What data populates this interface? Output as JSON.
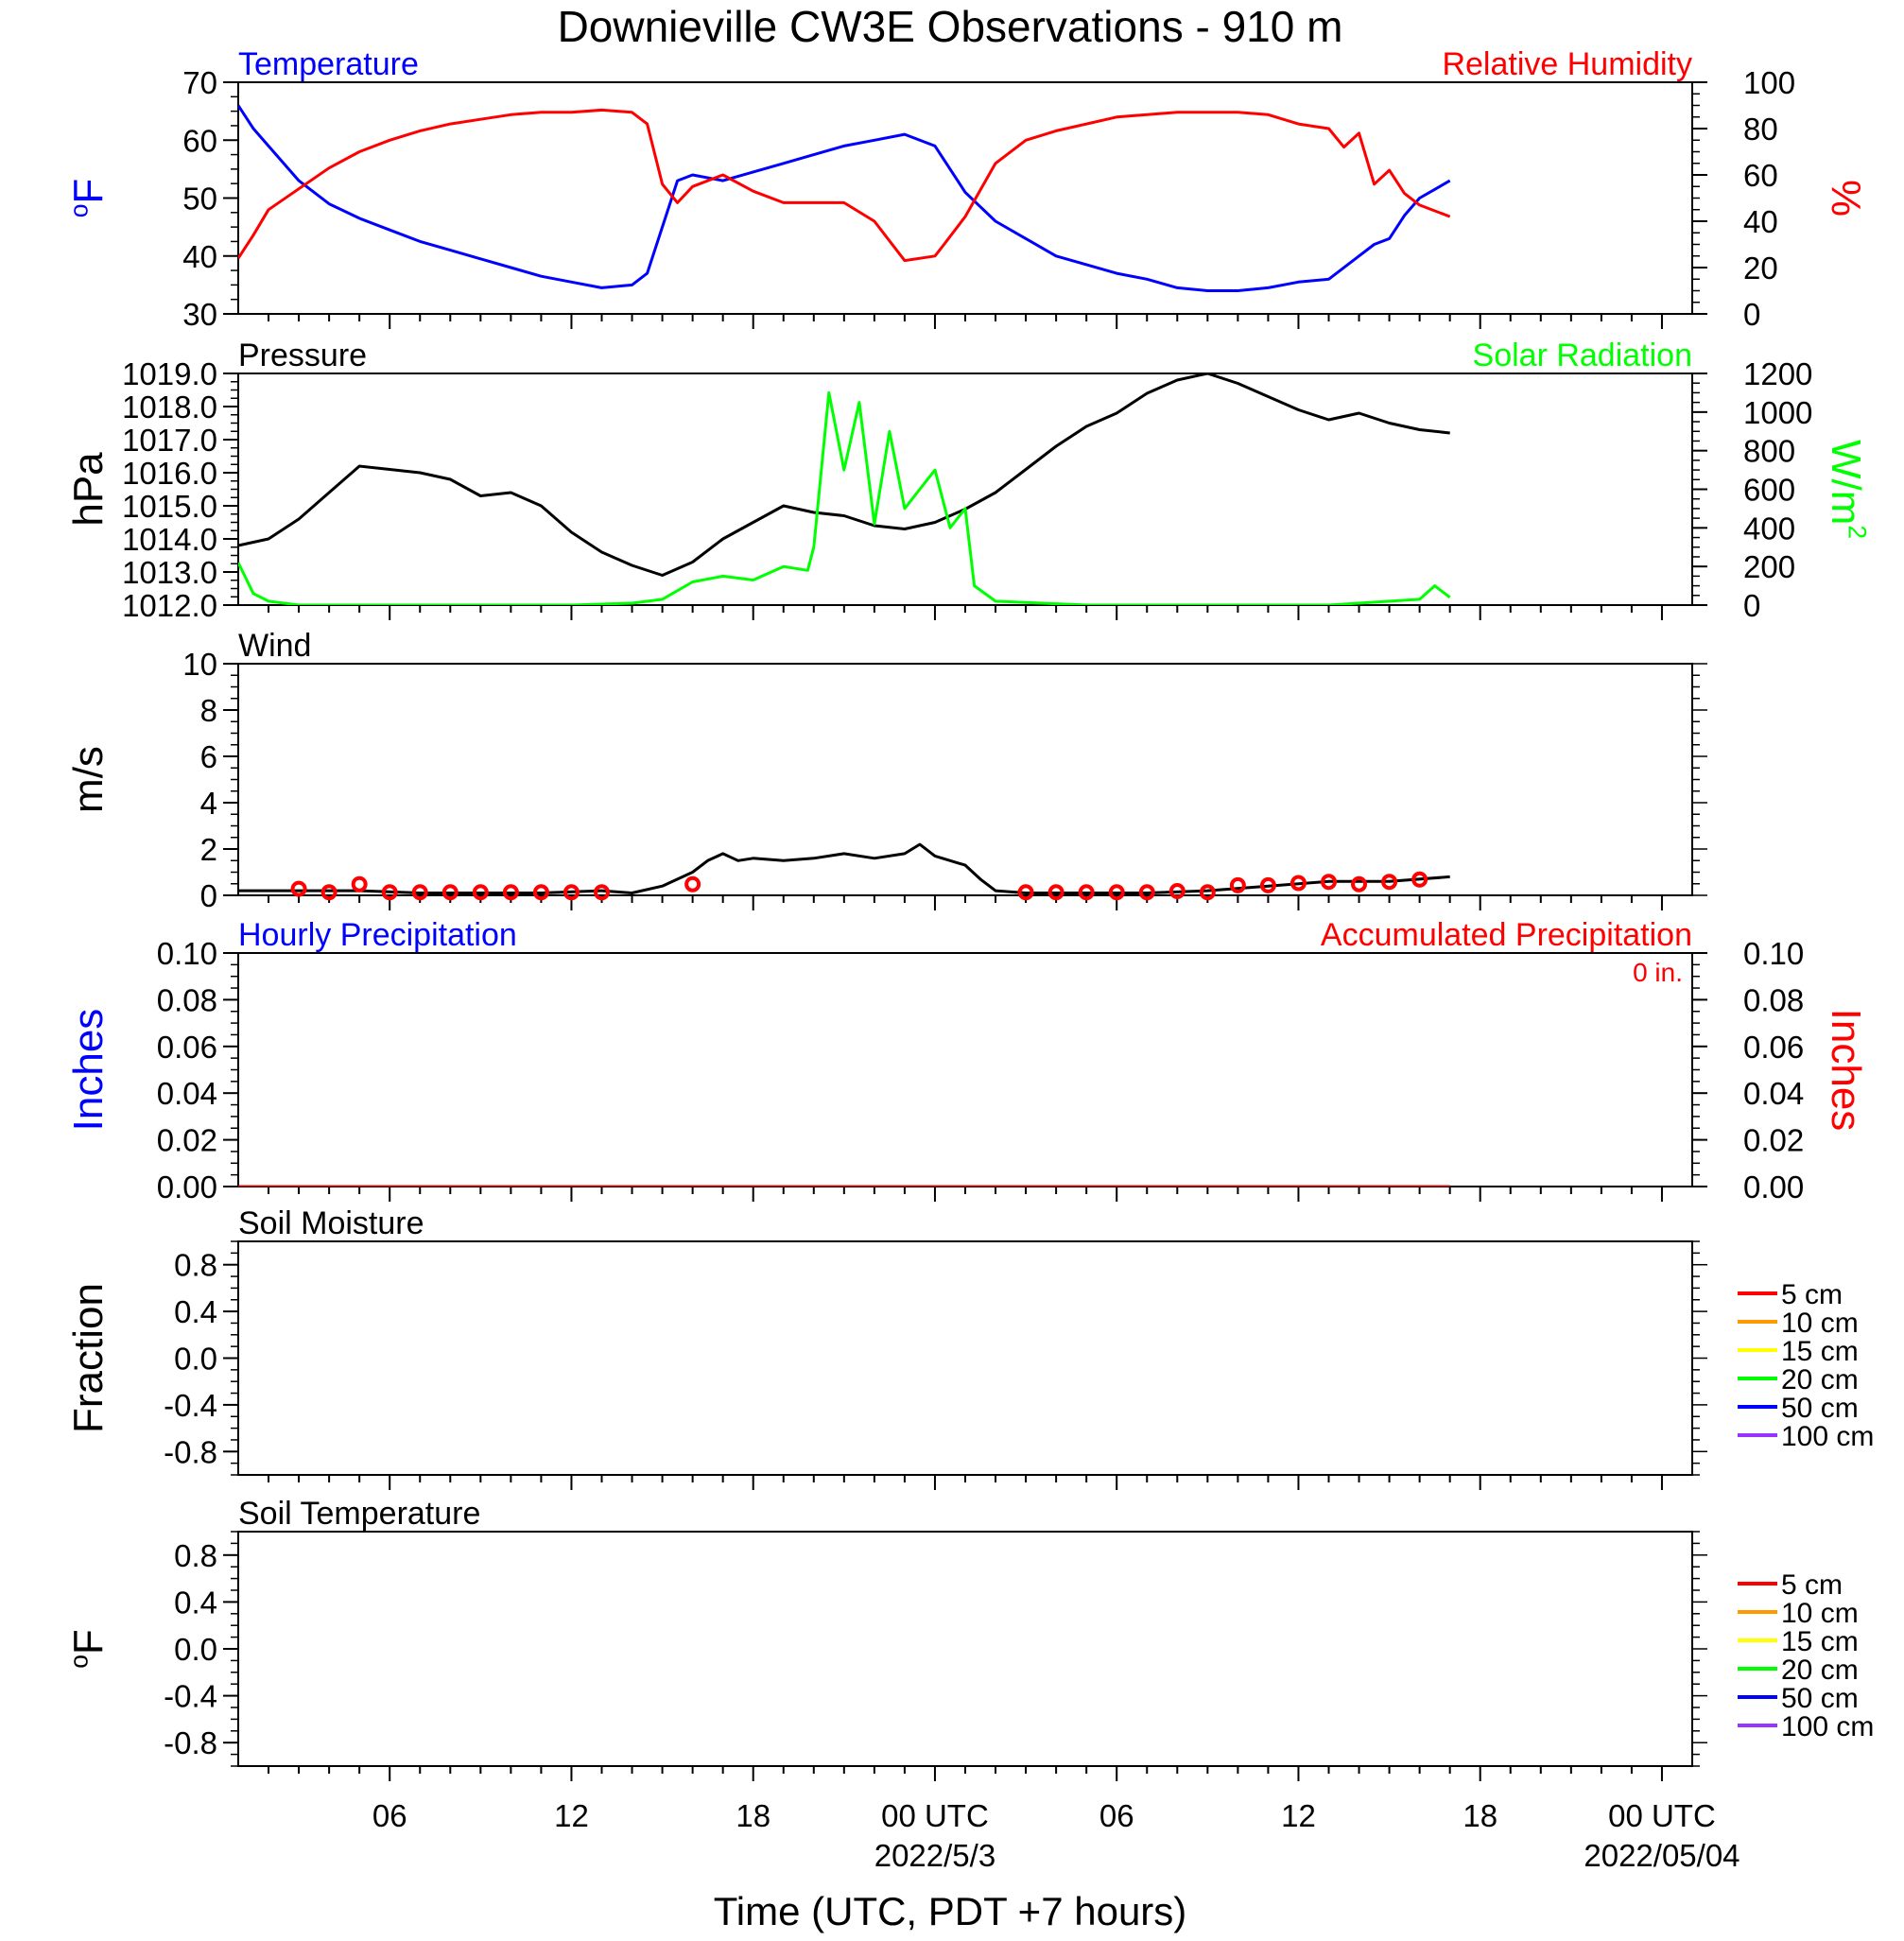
{
  "page": {
    "title": "Downieville CW3E Observations - 910 m",
    "xlabel": "Time (UTC, PDT +7 hours)"
  },
  "x_axis": {
    "range_hours": [
      0,
      48
    ],
    "ticks": [
      {
        "h": 5,
        "label": "06",
        "sub": ""
      },
      {
        "h": 11,
        "label": "12",
        "sub": ""
      },
      {
        "h": 17,
        "label": "18",
        "sub": ""
      },
      {
        "h": 23,
        "label": "00 UTC",
        "sub": "2022/5/3"
      },
      {
        "h": 29,
        "label": "06",
        "sub": ""
      },
      {
        "h": 35,
        "label": "12",
        "sub": ""
      },
      {
        "h": 41,
        "label": "18",
        "sub": ""
      },
      {
        "h": 47,
        "label": "00 UTC",
        "sub": "2022/05/04"
      }
    ]
  },
  "colors": {
    "temperature": "#0000ff",
    "humidity": "#ff0000",
    "pressure": "#000000",
    "solar": "#00ff00",
    "wind": "#000000",
    "wind_marker": "#ff0000",
    "precip_hourly": "#0000ff",
    "precip_accum": "#ff0000"
  },
  "chart_data": [
    {
      "type": "line",
      "panel": "temp_rh",
      "left_title": "Temperature",
      "right_title": "Relative Humidity",
      "ylabel_left": "oF",
      "ylabel_right": "%",
      "ylim_left": [
        30,
        70
      ],
      "ylim_right": [
        0,
        100
      ],
      "yticks_left": [
        "30",
        "40",
        "50",
        "60",
        "70"
      ],
      "yticks_right": [
        "0",
        "20",
        "40",
        "60",
        "80",
        "100"
      ],
      "series": [
        {
          "name": "Temperature",
          "axis": "left",
          "color": "#0000ff",
          "x": [
            0,
            0.5,
            1,
            2,
            3,
            4,
            5,
            6,
            7,
            8,
            9,
            10,
            11,
            12,
            13,
            13.5,
            14,
            14.5,
            15,
            16,
            17,
            18,
            19,
            20,
            21,
            22,
            23,
            24,
            25,
            26,
            27,
            28,
            29,
            30,
            31,
            32,
            33,
            34,
            35,
            36,
            37,
            37.5,
            38,
            38.5,
            39,
            40
          ],
          "y": [
            66,
            62,
            59,
            53,
            49,
            46.5,
            44.5,
            42.5,
            41,
            39.5,
            38,
            36.5,
            35.5,
            34.5,
            35,
            37,
            45,
            53,
            54,
            53,
            54.5,
            56,
            57.5,
            59,
            60,
            61,
            59,
            51,
            46,
            43,
            40,
            38.5,
            37,
            36,
            34.5,
            34,
            34,
            34.5,
            35.5,
            36,
            40,
            42,
            43,
            47,
            50,
            53
          ]
        },
        {
          "name": "Relative Humidity",
          "axis": "right",
          "color": "#ff0000",
          "x": [
            0,
            0.5,
            1,
            2,
            3,
            4,
            5,
            6,
            7,
            8,
            9,
            10,
            11,
            12,
            13,
            13.5,
            14,
            14.5,
            15,
            16,
            17,
            18,
            19,
            20,
            21,
            22,
            23,
            23.3,
            24,
            25,
            26,
            27,
            28,
            29,
            30,
            31,
            32,
            33,
            34,
            35,
            36,
            36.5,
            37,
            37.5,
            38,
            38.5,
            39,
            40
          ],
          "y": [
            24,
            34,
            45,
            54,
            63,
            70,
            75,
            79,
            82,
            84,
            86,
            87,
            87,
            88,
            87,
            82,
            56,
            48,
            55,
            60,
            53,
            48,
            48,
            48,
            40,
            23,
            25,
            30,
            42,
            65,
            75,
            79,
            82,
            85,
            86,
            87,
            87,
            87,
            86,
            82,
            80,
            72,
            78,
            56,
            62,
            52,
            47,
            42
          ]
        }
      ]
    },
    {
      "type": "line",
      "panel": "pressure_solar",
      "left_title": "Pressure",
      "right_title": "Solar Radiation",
      "ylabel_left": "hPa",
      "ylabel_right": "W/m2",
      "ylim_left": [
        1012.0,
        1019.0
      ],
      "ylim_right": [
        0,
        1200
      ],
      "yticks_left": [
        "1012.0",
        "1013.0",
        "1014.0",
        "1015.0",
        "1016.0",
        "1017.0",
        "1018.0",
        "1019.0"
      ],
      "yticks_right": [
        "0",
        "200",
        "400",
        "600",
        "800",
        "1000",
        "1200"
      ],
      "series": [
        {
          "name": "Pressure",
          "axis": "left",
          "color": "#000000",
          "x": [
            0,
            1,
            2,
            3,
            4,
            5,
            6,
            7,
            8,
            9,
            10,
            11,
            12,
            13,
            14,
            15,
            16,
            17,
            18,
            19,
            20,
            21,
            22,
            23,
            24,
            25,
            26,
            27,
            28,
            29,
            30,
            31,
            32,
            33,
            34,
            35,
            36,
            37,
            38,
            39,
            40
          ],
          "y": [
            1013.8,
            1014.0,
            1014.6,
            1015.4,
            1016.2,
            1016.1,
            1016.0,
            1015.8,
            1015.3,
            1015.4,
            1015.0,
            1014.2,
            1013.6,
            1013.2,
            1012.9,
            1013.3,
            1014.0,
            1014.5,
            1015.0,
            1014.8,
            1014.7,
            1014.4,
            1014.3,
            1014.5,
            1014.9,
            1015.4,
            1016.1,
            1016.8,
            1017.4,
            1017.8,
            1018.4,
            1018.8,
            1019.0,
            1018.7,
            1018.3,
            1017.9,
            1017.6,
            1017.8,
            1017.5,
            1017.3,
            1017.2
          ]
        },
        {
          "name": "Solar Radiation",
          "axis": "right",
          "color": "#00ff00",
          "x": [
            0,
            0.5,
            1,
            2,
            11,
            13,
            14,
            15,
            16,
            17,
            18,
            18.8,
            19,
            19.5,
            20,
            20.5,
            21,
            21.5,
            22,
            22.5,
            23,
            23.5,
            24,
            24.3,
            25,
            28,
            36,
            39,
            39.5,
            40
          ],
          "y": [
            220,
            60,
            20,
            0,
            0,
            10,
            30,
            120,
            150,
            130,
            200,
            180,
            300,
            1100,
            700,
            1050,
            420,
            900,
            500,
            600,
            700,
            400,
            500,
            100,
            20,
            0,
            0,
            30,
            100,
            40
          ]
        }
      ]
    },
    {
      "type": "line",
      "panel": "wind",
      "left_title": "Wind",
      "ylabel_left": "m/s",
      "ylim_left": [
        0,
        10
      ],
      "yticks_left": [
        "0",
        "2",
        "4",
        "6",
        "8",
        "10"
      ],
      "series": [
        {
          "name": "Wind",
          "axis": "left",
          "color": "#000000",
          "x": [
            0,
            2,
            4,
            6,
            8,
            10,
            12,
            13,
            14,
            15,
            15.5,
            16,
            16.5,
            17,
            18,
            19,
            20,
            21,
            22,
            22.5,
            23,
            24,
            24.5,
            25,
            26,
            28,
            30,
            32,
            34,
            36,
            38,
            40
          ],
          "y": [
            0.2,
            0.2,
            0.2,
            0.1,
            0.1,
            0.1,
            0.2,
            0.1,
            0.4,
            1.0,
            1.5,
            1.8,
            1.5,
            1.6,
            1.5,
            1.6,
            1.8,
            1.6,
            1.8,
            2.2,
            1.7,
            1.3,
            0.7,
            0.2,
            0.1,
            0.1,
            0.1,
            0.2,
            0.4,
            0.6,
            0.6,
            0.8
          ]
        },
        {
          "name": "Wind markers",
          "axis": "left",
          "color": "#ff0000",
          "x": [
            2,
            3,
            4,
            5,
            6,
            7,
            8,
            9,
            10,
            11,
            12,
            15,
            26,
            27,
            28,
            29,
            30,
            31,
            32,
            33,
            34,
            35,
            36,
            37,
            38,
            39
          ],
          "y": [
            0.2,
            0.05,
            0.4,
            0.05,
            0.05,
            0.05,
            0.05,
            0.05,
            0.05,
            0.05,
            0.05,
            0.4,
            0.05,
            0.05,
            0.05,
            0.05,
            0.05,
            0.1,
            0.05,
            0.35,
            0.35,
            0.45,
            0.5,
            0.4,
            0.5,
            0.6
          ]
        }
      ]
    },
    {
      "type": "line",
      "panel": "precip",
      "left_title": "Hourly Precipitation",
      "right_title": "Accumulated Precipitation",
      "annotation": "0 in.",
      "ylabel_left": "Inches",
      "ylabel_right": "Inches",
      "ylim_left": [
        0,
        0.1
      ],
      "ylim_right": [
        0,
        0.1
      ],
      "yticks_left": [
        "0.00",
        "0.02",
        "0.04",
        "0.06",
        "0.08",
        "0.10"
      ],
      "yticks_right": [
        "0.00",
        "0.02",
        "0.04",
        "0.06",
        "0.08",
        "0.10"
      ],
      "series": [
        {
          "name": "Hourly Precipitation",
          "axis": "left",
          "color": "#0000ff",
          "x": [
            0,
            40
          ],
          "y": [
            0,
            0
          ]
        },
        {
          "name": "Accumulated Precipitation",
          "axis": "right",
          "color": "#ff0000",
          "x": [
            0,
            40
          ],
          "y": [
            0,
            0
          ]
        }
      ]
    },
    {
      "type": "line",
      "panel": "soil_moisture",
      "left_title": "Soil Moisture",
      "ylabel_left": "Fraction",
      "ylim_left": [
        -1,
        1
      ],
      "yticks_left": [
        "-0.8",
        "-0.4",
        "0.0",
        "0.4",
        "0.8"
      ],
      "legend": [
        {
          "label": "5 cm",
          "color": "#ff0000"
        },
        {
          "label": "10 cm",
          "color": "#ff9900"
        },
        {
          "label": "15 cm",
          "color": "#ffff00"
        },
        {
          "label": "20 cm",
          "color": "#00ff00"
        },
        {
          "label": "50 cm",
          "color": "#0000ff"
        },
        {
          "label": "100 cm",
          "color": "#9933ff"
        }
      ],
      "series": []
    },
    {
      "type": "line",
      "panel": "soil_temp",
      "left_title": "Soil Temperature",
      "ylabel_left": "oF",
      "ylim_left": [
        -1,
        1
      ],
      "yticks_left": [
        "-0.8",
        "-0.4",
        "0.0",
        "0.4",
        "0.8"
      ],
      "legend": [
        {
          "label": "5 cm",
          "color": "#ff0000"
        },
        {
          "label": "10 cm",
          "color": "#ff9900"
        },
        {
          "label": "15 cm",
          "color": "#ffff00"
        },
        {
          "label": "20 cm",
          "color": "#00ff00"
        },
        {
          "label": "50 cm",
          "color": "#0000ff"
        },
        {
          "label": "100 cm",
          "color": "#9933ff"
        }
      ],
      "series": []
    }
  ]
}
